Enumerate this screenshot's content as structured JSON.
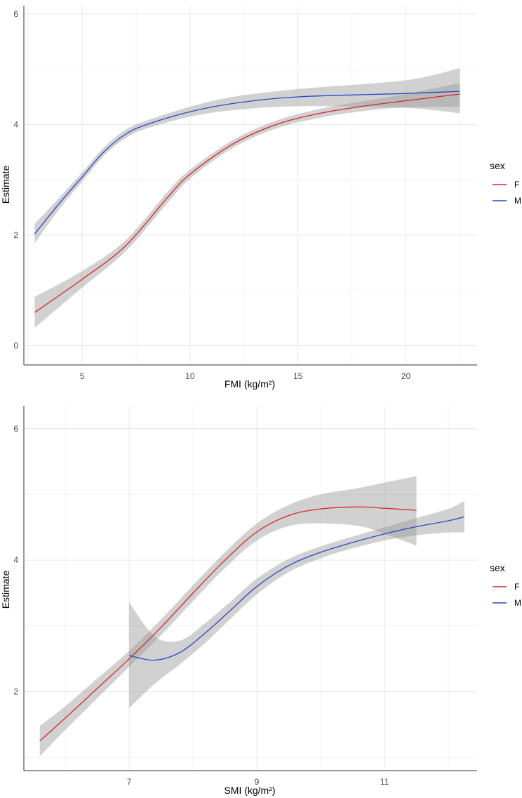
{
  "colors": {
    "F": "#d62728",
    "M": "#2f45c8",
    "band": "#999999",
    "grid_major": "#e6e6e6",
    "grid_minor": "#f2f2f2",
    "axis": "#333333"
  },
  "chart_data": [
    {
      "type": "line",
      "xlabel": "FMI (kg/m²)",
      "ylabel": "Estimate",
      "xlim": [
        2.3,
        23.3
      ],
      "ylim": [
        -0.35,
        6.15
      ],
      "xticks": [
        5,
        10,
        15,
        20
      ],
      "yticks": [
        0,
        2,
        4,
        6
      ],
      "legend": {
        "title": "sex",
        "position": "right",
        "entries": [
          "F",
          "M"
        ]
      },
      "series": [
        {
          "name": "F",
          "x": [
            2.8,
            5,
            7,
            9,
            10,
            12,
            14,
            16,
            18,
            20,
            22.5
          ],
          "y": [
            0.6,
            1.2,
            1.8,
            2.7,
            3.1,
            3.65,
            4.0,
            4.2,
            4.33,
            4.43,
            4.55
          ],
          "lower": [
            0.32,
            1.05,
            1.7,
            2.6,
            3.02,
            3.58,
            3.93,
            4.12,
            4.24,
            4.31,
            4.32
          ],
          "upper": [
            0.88,
            1.35,
            1.9,
            2.8,
            3.18,
            3.72,
            4.07,
            4.28,
            4.42,
            4.55,
            4.75
          ]
        },
        {
          "name": "M",
          "x": [
            2.8,
            4,
            5,
            6,
            7,
            8,
            10,
            12,
            15,
            20,
            22.5
          ],
          "y": [
            2.02,
            2.6,
            3.05,
            3.5,
            3.82,
            4.0,
            4.23,
            4.38,
            4.5,
            4.56,
            4.6
          ],
          "lower": [
            1.85,
            2.5,
            2.97,
            3.43,
            3.75,
            3.93,
            4.14,
            4.26,
            4.33,
            4.3,
            4.2
          ],
          "upper": [
            2.2,
            2.7,
            3.13,
            3.58,
            3.9,
            4.07,
            4.32,
            4.5,
            4.64,
            4.8,
            5.02
          ]
        }
      ]
    },
    {
      "type": "line",
      "xlabel": "SMI (kg/m²)",
      "ylabel": "Estimate",
      "xlim": [
        5.35,
        12.45
      ],
      "ylim": [
        0.8,
        6.35
      ],
      "xticks": [
        7,
        9,
        11
      ],
      "yticks": [
        2,
        4,
        6
      ],
      "legend": {
        "title": "sex",
        "position": "right",
        "entries": [
          "F",
          "M"
        ]
      },
      "series": [
        {
          "name": "F",
          "x": [
            5.6,
            6.0,
            6.5,
            7.0,
            7.5,
            8.0,
            8.5,
            9.0,
            9.5,
            10.0,
            10.6,
            11.0,
            11.5
          ],
          "y": [
            1.25,
            1.6,
            2.05,
            2.5,
            2.98,
            3.5,
            4.0,
            4.43,
            4.68,
            4.78,
            4.81,
            4.79,
            4.76
          ],
          "lower": [
            1.02,
            1.42,
            1.9,
            2.38,
            2.86,
            3.38,
            3.88,
            4.3,
            4.52,
            4.56,
            4.52,
            4.4,
            4.22
          ],
          "upper": [
            1.48,
            1.78,
            2.2,
            2.62,
            3.1,
            3.62,
            4.12,
            4.56,
            4.84,
            5.0,
            5.1,
            5.18,
            5.28
          ]
        },
        {
          "name": "M",
          "x": [
            7.0,
            7.4,
            7.8,
            8.2,
            8.6,
            9.0,
            9.5,
            10.0,
            10.5,
            11.0,
            11.5,
            12.0,
            12.25
          ],
          "y": [
            2.55,
            2.48,
            2.6,
            2.9,
            3.25,
            3.6,
            3.92,
            4.12,
            4.27,
            4.4,
            4.51,
            4.6,
            4.66
          ],
          "lower": [
            1.75,
            2.12,
            2.42,
            2.75,
            3.12,
            3.48,
            3.82,
            4.03,
            4.18,
            4.3,
            4.38,
            4.42,
            4.42
          ],
          "upper": [
            3.36,
            2.84,
            2.78,
            3.05,
            3.38,
            3.72,
            4.02,
            4.21,
            4.36,
            4.5,
            4.64,
            4.78,
            4.9
          ]
        }
      ]
    }
  ]
}
